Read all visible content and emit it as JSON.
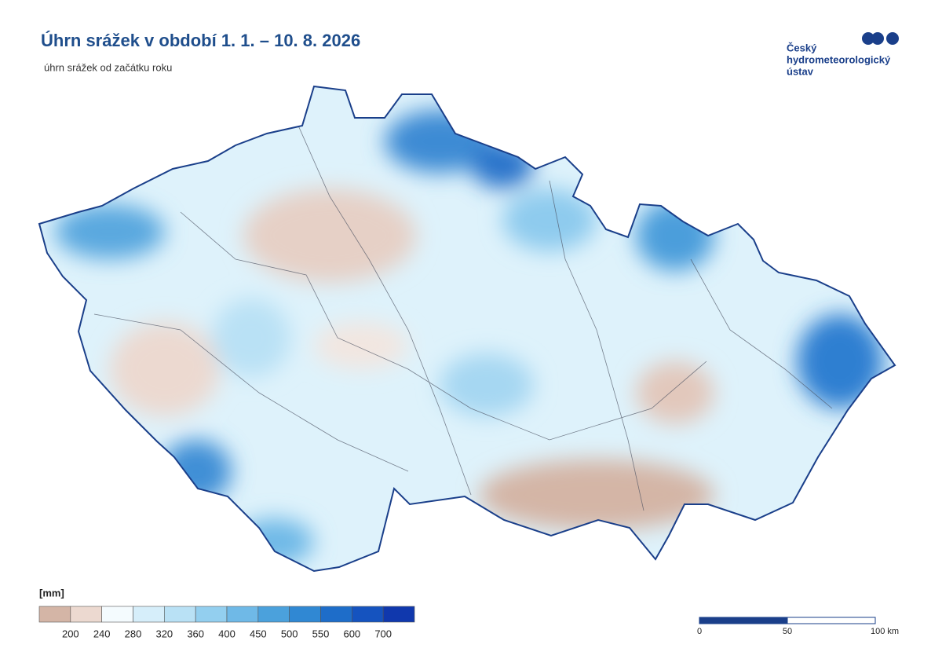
{
  "header": {
    "title": "Úhrn srážek v období 1. 1. – 10. 8. 2026",
    "subtitle": "úhrn srážek od začátku roku"
  },
  "logo": {
    "lines": [
      "Český",
      "hydrometeorologický",
      "ústav"
    ]
  },
  "legend": {
    "unit": "[mm]",
    "colors": [
      "#d4b5a6",
      "#ecd9d0",
      "#f4fbfe",
      "#d6eefa",
      "#b9e1f5",
      "#93cfef",
      "#6fb9e7",
      "#4ba1dc",
      "#3088d3",
      "#1e6dc9",
      "#1553bf",
      "#1038ad"
    ],
    "labels": [
      200,
      240,
      280,
      320,
      360,
      400,
      450,
      500,
      550,
      600,
      700
    ]
  },
  "scale": {
    "ticks": [
      0,
      50,
      {
        "value": 100,
        "label": "100 km"
      }
    ]
  }
}
